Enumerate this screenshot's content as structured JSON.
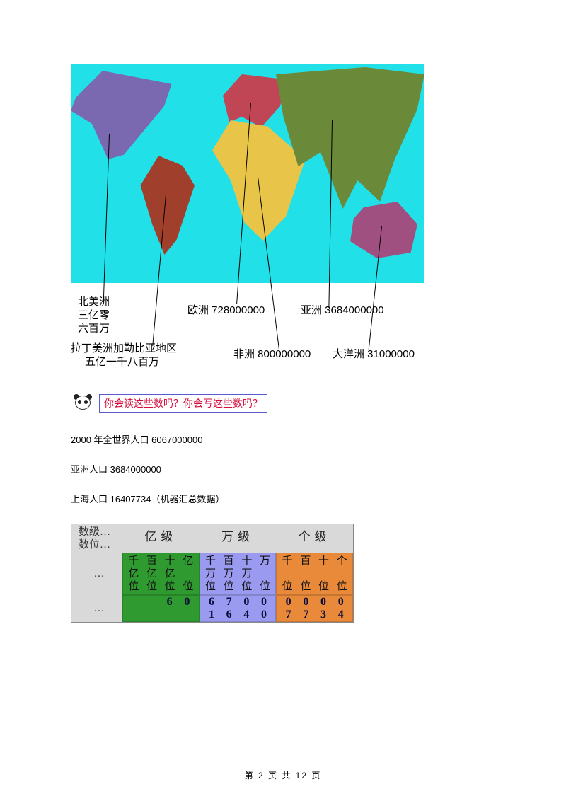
{
  "map": {
    "bg_color": "#22e0e8",
    "continents": {
      "north_america": {
        "color": "#7a68b0"
      },
      "south_america": {
        "color": "#a0402c"
      },
      "europe": {
        "color": "#c04555"
      },
      "africa": {
        "color": "#e8c548"
      },
      "asia": {
        "color": "#6a8a3a"
      },
      "oceania": {
        "color": "#a05080"
      }
    },
    "labels": {
      "na_line1": "北美洲",
      "na_line2": "三亿零",
      "na_line3": "六百万",
      "eu": "欧洲 728000000",
      "as": "亚洲 3684000000",
      "latam_line1": "拉丁美洲加勒比亚地区",
      "latam_line2": "五亿一千八百万",
      "af": "非洲 800000000",
      "oc": "大洋洲 31000000"
    }
  },
  "panda_speech": "你会读这些数吗？你会写这些数吗？",
  "body": {
    "line1": "2000 年全世界人口 6067000000",
    "line2": "亚洲人口 3684000000",
    "line3": "上海人口 16407734（机器汇总数据）"
  },
  "table": {
    "rowhead1_a": "数级…",
    "rowhead1_b": "数位…",
    "rowhead_dots": "…",
    "levels": {
      "yi": "亿级",
      "wan": "万级",
      "ge": "个级"
    },
    "place_chars": {
      "yi": [
        [
          "千",
          "百",
          "十",
          "亿"
        ],
        [
          "亿",
          "亿",
          "亿",
          ""
        ],
        [
          "位",
          "位",
          "位",
          "位"
        ]
      ],
      "wan": [
        [
          "千",
          "百",
          "十",
          "万"
        ],
        [
          "万",
          "万",
          "万",
          ""
        ],
        [
          "位",
          "位",
          "位",
          "位"
        ]
      ],
      "ge": [
        [
          "千",
          "百",
          "十",
          "个"
        ],
        [
          "",
          "",
          "",
          ""
        ],
        [
          "位",
          "位",
          "位",
          "位"
        ]
      ]
    },
    "digits": {
      "row1": {
        "yi": [
          "",
          "",
          "6",
          "0"
        ],
        "wan": [
          "6",
          "7",
          "0",
          "0"
        ],
        "ge": [
          "0",
          "0",
          "0",
          "0"
        ]
      },
      "row2": {
        "yi": [
          "",
          "",
          "",
          ""
        ],
        "wan": [
          "1",
          "6",
          "4",
          "0"
        ],
        "ge": [
          "7",
          "7",
          "3",
          "4"
        ]
      }
    },
    "colors": {
      "yi": "#2f9a2f",
      "wan": "#9a9af0",
      "ge": "#e88a3a",
      "header_bg": "#d9d9d9"
    }
  },
  "footer": "第 2 页 共 12 页"
}
